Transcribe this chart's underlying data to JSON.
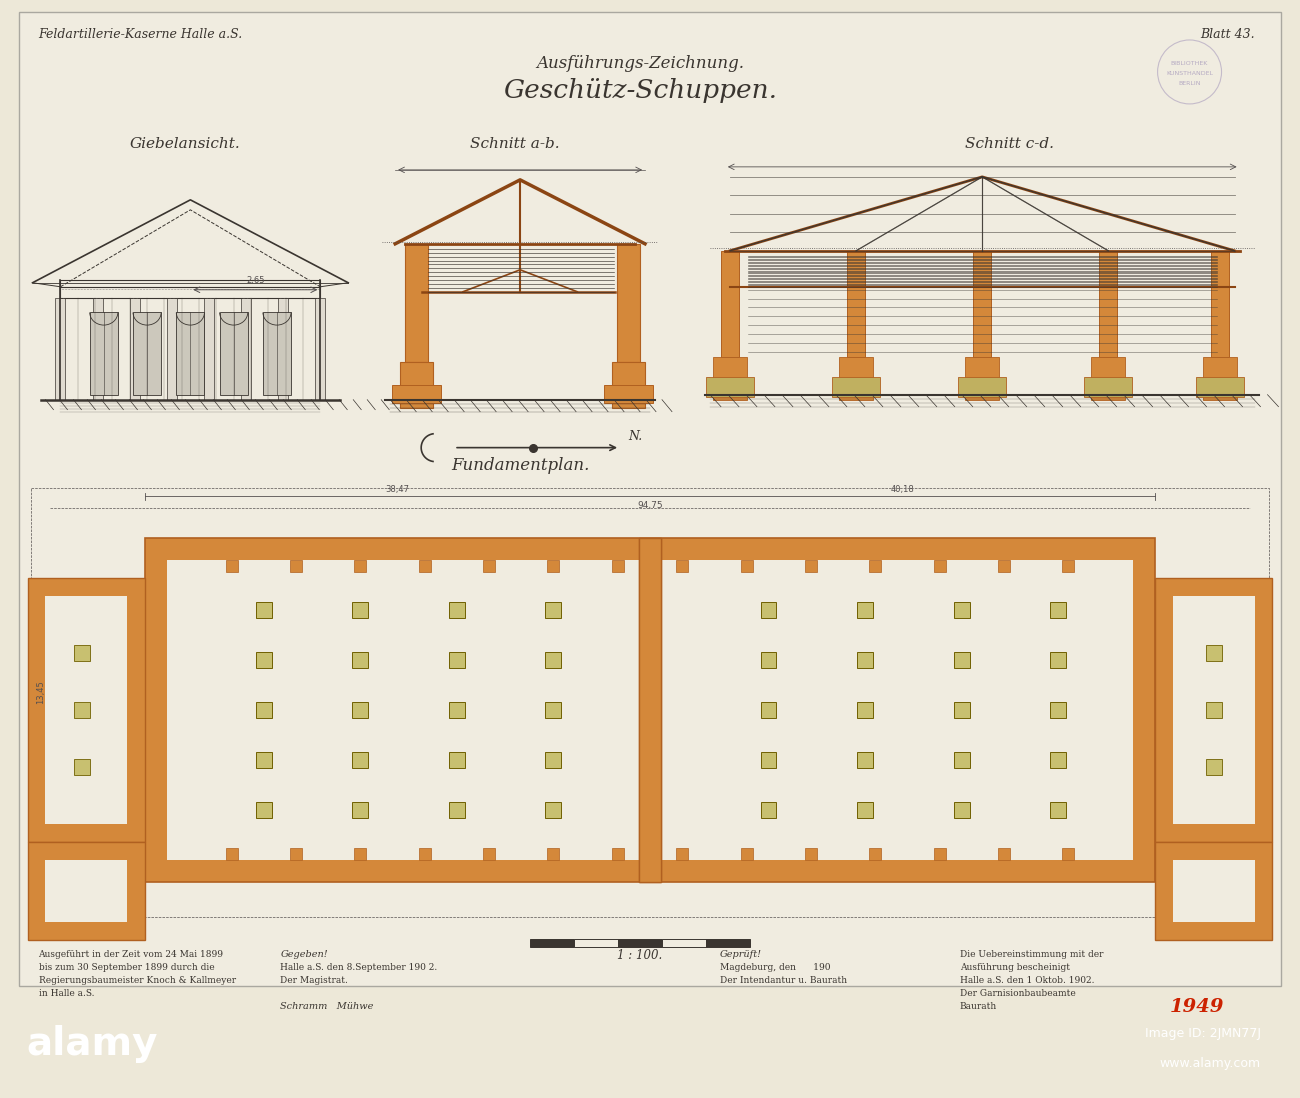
{
  "bg_color": "#ede8d8",
  "paper_color": "#f0ece0",
  "orange": "#d4883a",
  "orange_edge": "#b06020",
  "line_color": "#3a3530",
  "dim_color": "#555050",
  "brown": "#8B4513",
  "title_top_left": "Feldartillerie-Kaserne Halle a.S.",
  "title_top_right": "Blatt 43.",
  "subtitle1": "Ausführungs-Zeichnung.",
  "subtitle2": "Geschütz-Schuppen.",
  "label_giebelansicht": "Giebelansicht.",
  "label_schnitt_ab": "Schnitt a-b.",
  "label_schnitt_cd": "Schnitt c-d.",
  "label_fundamentplan": "Fundamentplan.",
  "scale_label": "1 : 100.",
  "bottom_left_text": [
    "Ausgeführt in der Zeit vom 24 Mai 1899",
    "bis zum 30 September 1899 durch die",
    "Regierungsbaumeister Knoch & Kallmeyer",
    "in Halle a.S."
  ],
  "bottom_mid_text": [
    "Gegeben!",
    "Halle a.S. den 8.September 190 2.",
    "Der Magistrat."
  ],
  "bottom_r1_text": [
    "Geprüft!",
    "Magdeburg, den      190",
    "Der Intendantur u. Baurath"
  ],
  "bottom_r2_text": [
    "Die Uebereinstimmung mit der",
    "Ausführung bescheinigt",
    "Halle a.S. den 1 Oktob. 1902.",
    "Der Garnisionbaubeamte",
    "Baurath"
  ],
  "year_stamp": "1949",
  "alamy_text": "alamy",
  "image_id": "Image ID: 2JMN77J",
  "website": "www.alamy.com",
  "stamp_texts": [
    "BIBLIOTHEK",
    "KUNSTHANDEL",
    "BERLIN"
  ]
}
